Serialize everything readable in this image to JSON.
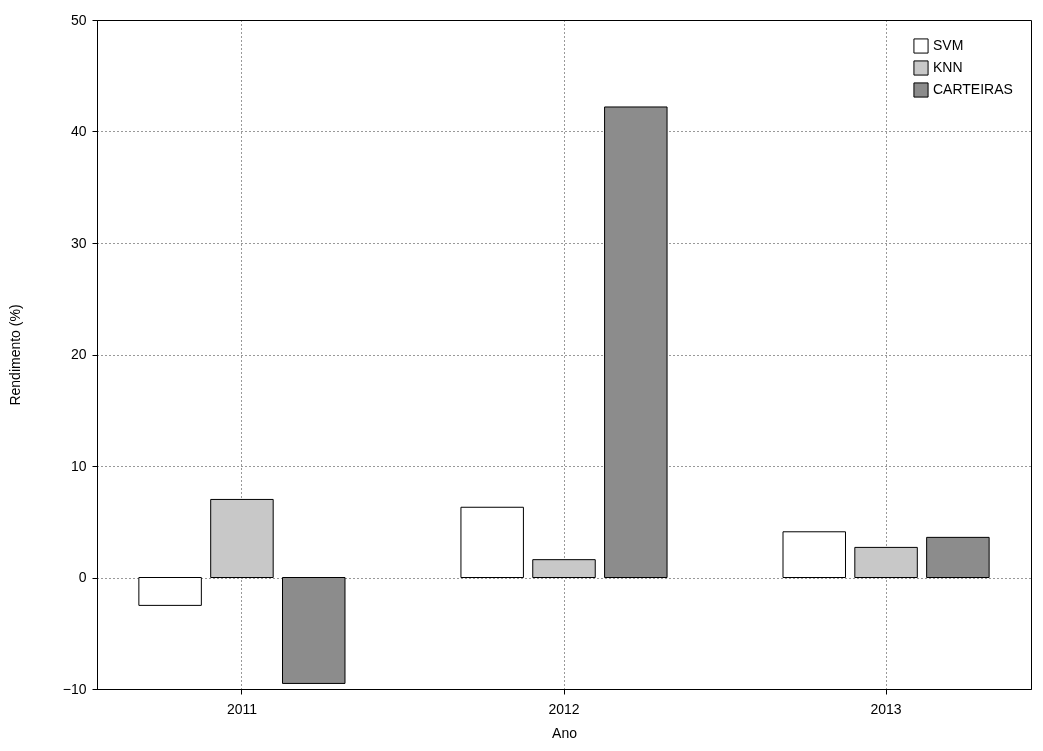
{
  "chart_data": {
    "type": "bar",
    "xlabel": "Ano",
    "ylabel": "Rendimento (%)",
    "categories": [
      "2011",
      "2012",
      "2013"
    ],
    "series": [
      {
        "name": "SVM",
        "color": "#ffffff",
        "values": [
          -2.5,
          6.3,
          4.1
        ]
      },
      {
        "name": "KNN",
        "color": "#c8c8c8",
        "values": [
          7.0,
          1.6,
          2.7
        ]
      },
      {
        "name": "CARTEIRAS",
        "color": "#8c8c8c",
        "values": [
          -9.5,
          42.2,
          3.6
        ]
      }
    ],
    "ylim": [
      -10,
      50
    ],
    "yticks": [
      -10,
      0,
      10,
      20,
      30,
      40,
      50
    ],
    "grid": true,
    "legend": "top right"
  }
}
